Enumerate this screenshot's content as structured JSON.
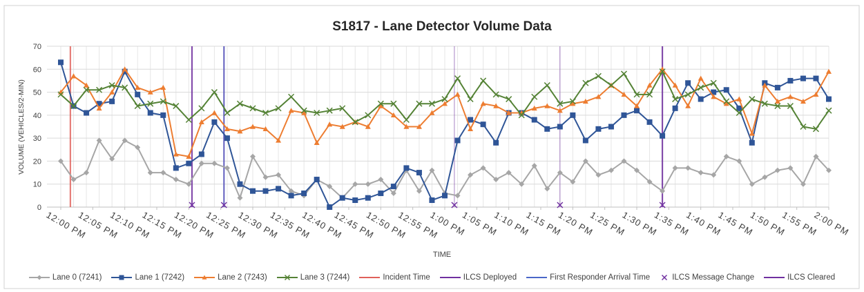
{
  "chart_data": {
    "type": "line",
    "title": "S1817 - Lane Detector Volume Data",
    "x_label": "TIME",
    "y_label": "VOLUME (VEHICLES/2-MIN)",
    "xlim": [
      0,
      120
    ],
    "ylim": [
      0,
      70
    ],
    "yticks": [
      0,
      10,
      20,
      30,
      40,
      50,
      60,
      70
    ],
    "xticks": [
      {
        "value": 0,
        "label": "12:00 PM"
      },
      {
        "value": 5,
        "label": "12:05 PM"
      },
      {
        "value": 10,
        "label": "12:10 PM"
      },
      {
        "value": 15,
        "label": "12:15 PM"
      },
      {
        "value": 20,
        "label": "12:20 PM"
      },
      {
        "value": 25,
        "label": "12:25 PM"
      },
      {
        "value": 30,
        "label": "12:30 PM"
      },
      {
        "value": 35,
        "label": "12:35 PM"
      },
      {
        "value": 40,
        "label": "12:40 PM"
      },
      {
        "value": 45,
        "label": "12:45 PM"
      },
      {
        "value": 50,
        "label": "12:50 PM"
      },
      {
        "value": 55,
        "label": "12:55 PM"
      },
      {
        "value": 60,
        "label": "1:00 PM"
      },
      {
        "value": 65,
        "label": "1:05 PM"
      },
      {
        "value": 70,
        "label": "1:10 PM"
      },
      {
        "value": 75,
        "label": "1:15 PM"
      },
      {
        "value": 80,
        "label": "1:20 PM"
      },
      {
        "value": 85,
        "label": "1:25 PM"
      },
      {
        "value": 90,
        "label": "1:30 PM"
      },
      {
        "value": 95,
        "label": "1:35 PM"
      },
      {
        "value": 100,
        "label": "1:40 PM"
      },
      {
        "value": 105,
        "label": "1:45 PM"
      },
      {
        "value": 110,
        "label": "1:50 PM"
      },
      {
        "value": 115,
        "label": "1:55 PM"
      },
      {
        "value": 120,
        "label": "2:00 PM"
      }
    ],
    "grid": true,
    "x": [
      0,
      2,
      4,
      6,
      8,
      10,
      12,
      14,
      16,
      18,
      20,
      22,
      24,
      26,
      28,
      30,
      32,
      34,
      36,
      38,
      40,
      42,
      44,
      46,
      48,
      50,
      52,
      54,
      56,
      58,
      60,
      62,
      64,
      66,
      68,
      70,
      72,
      74,
      76,
      78,
      80,
      82,
      84,
      86,
      88,
      90,
      92,
      94,
      96,
      98,
      100,
      102,
      104,
      106,
      108,
      110,
      112,
      114,
      116,
      118,
      120
    ],
    "series": [
      {
        "name": "Lane 0 (7241)",
        "color": "#a6a6a6",
        "marker": "diamond",
        "values": [
          20,
          12,
          15,
          29,
          21,
          29,
          26,
          15,
          15,
          12,
          10,
          19,
          19,
          17,
          4,
          22,
          13,
          14,
          7,
          5,
          12,
          9,
          4,
          10,
          10,
          12,
          6,
          16,
          7,
          16,
          6,
          5,
          14,
          17,
          12,
          15,
          10,
          18,
          8,
          15,
          11,
          20,
          14,
          16,
          20,
          16,
          11,
          7,
          17,
          17,
          15,
          14,
          22,
          20,
          10,
          13,
          16,
          17,
          10,
          22,
          16
        ]
      },
      {
        "name": "Lane 1 (7242)",
        "color": "#2f5597",
        "marker": "square",
        "values": [
          63,
          44,
          41,
          45,
          46,
          59,
          49,
          41,
          40,
          17,
          19,
          23,
          37,
          30,
          10,
          7,
          7,
          8,
          5,
          6,
          12,
          0,
          4,
          3,
          4,
          6,
          9,
          17,
          15,
          3,
          5,
          29,
          38,
          36,
          28,
          41,
          41,
          38,
          34,
          35,
          40,
          29,
          34,
          35,
          40,
          42,
          37,
          31,
          43,
          54,
          47,
          50,
          51,
          43,
          28,
          54,
          52,
          55,
          56,
          56,
          47
        ]
      },
      {
        "name": "Lane 2 (7243)",
        "color": "#ed7d31",
        "marker": "triangle",
        "values": [
          50,
          57,
          53,
          43,
          50,
          60,
          52,
          50,
          52,
          23,
          22,
          37,
          41,
          34,
          33,
          35,
          34,
          29,
          42,
          41,
          28,
          36,
          35,
          37,
          35,
          44,
          40,
          35,
          35,
          41,
          45,
          49,
          34,
          45,
          44,
          41,
          41,
          43,
          44,
          42,
          45,
          46,
          48,
          53,
          49,
          44,
          53,
          60,
          53,
          44,
          56,
          48,
          45,
          47,
          32,
          53,
          46,
          48,
          46,
          49,
          59
        ]
      },
      {
        "name": "Lane 3 (7244)",
        "color": "#548235",
        "marker": "x",
        "values": [
          49,
          44,
          51,
          51,
          53,
          52,
          44,
          45,
          46,
          44,
          38,
          43,
          50,
          41,
          45,
          43,
          41,
          43,
          48,
          42,
          41,
          42,
          43,
          37,
          40,
          45,
          45,
          38,
          45,
          45,
          47,
          56,
          47,
          55,
          49,
          47,
          40,
          48,
          53,
          45,
          46,
          54,
          57,
          53,
          58,
          49,
          49,
          59,
          47,
          49,
          52,
          54,
          46,
          41,
          47,
          45,
          44,
          44,
          35,
          34,
          42
        ]
      }
    ],
    "events": [
      {
        "name": "Incident Time",
        "color": "#e0605a",
        "x": [
          1.5
        ]
      },
      {
        "name": "ILCS Deployed",
        "color": "#7030a0",
        "x": [
          20.5
        ]
      },
      {
        "name": "First Responder Arrival Time",
        "color": "#4a66c8",
        "x": [
          25.5
        ]
      },
      {
        "name": "ILCS Message Change",
        "color": "#7030a0",
        "marker": "x",
        "x": [
          20.5,
          25.5,
          61.5,
          78,
          94
        ]
      },
      {
        "name": "ILCS Cleared",
        "color": "#7030a0",
        "x": [
          94
        ]
      }
    ]
  }
}
